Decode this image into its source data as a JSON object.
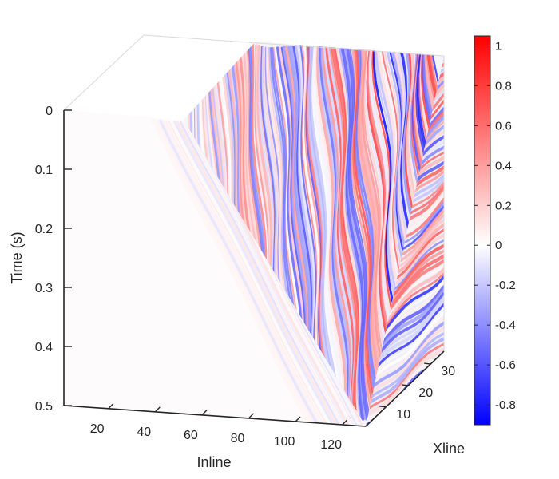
{
  "chart_data": {
    "type": "heatmap",
    "subtype": "3d-seismic-volume",
    "title": "",
    "axes": {
      "time": {
        "label": "Time (s)",
        "range": [
          0,
          0.5
        ],
        "reversed": true,
        "ticks": [
          0,
          0.1,
          0.2,
          0.3,
          0.4,
          0.5
        ],
        "tick_labels": [
          "0",
          "0.1",
          "0.2",
          "0.3",
          "0.4",
          "0.5"
        ]
      },
      "inline": {
        "label": "Inline",
        "range": [
          1,
          130
        ],
        "ticks": [
          20,
          40,
          60,
          80,
          100,
          120
        ],
        "tick_labels": [
          "20",
          "40",
          "60",
          "80",
          "100",
          "120"
        ]
      },
      "xline": {
        "label": "Xline",
        "range": [
          1,
          36
        ],
        "ticks": [
          10,
          20,
          30
        ],
        "tick_labels": [
          "10",
          "20",
          "30"
        ]
      }
    },
    "colorbar": {
      "colormap": "blue-white-red",
      "range": [
        -0.9,
        1.05
      ],
      "ticks": [
        1,
        0.8,
        0.6,
        0.4,
        0.2,
        0,
        -0.2,
        -0.4,
        -0.6,
        -0.8
      ],
      "tick_labels": [
        "1",
        "0.8",
        "0.6",
        "0.4",
        "0.2",
        "0",
        "-0.2",
        "-0.4",
        "-0.6",
        "-0.8"
      ],
      "colors": {
        "negative": "#0000ff",
        "zero": "#ffffff",
        "positive": "#ff0000"
      }
    },
    "box_edges_visible": true,
    "grid": false
  }
}
